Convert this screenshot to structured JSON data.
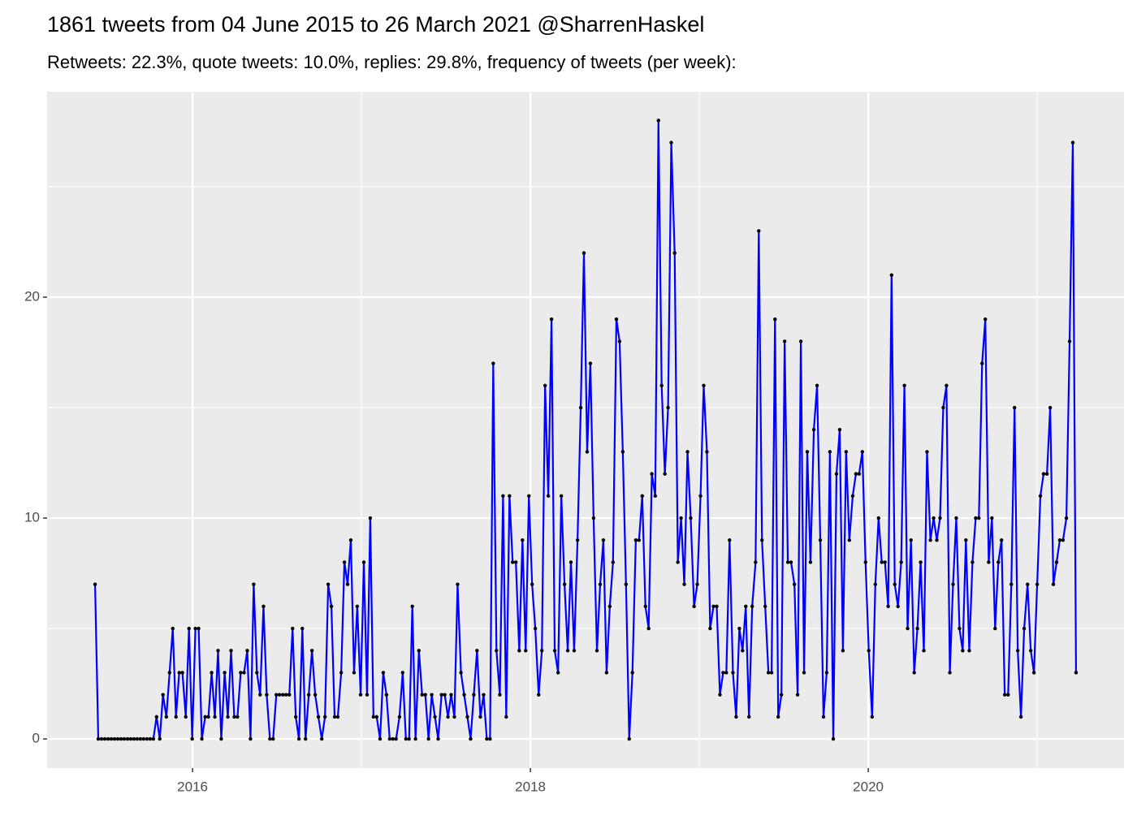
{
  "chart_data": {
    "type": "line",
    "title": "1861 tweets from 04 June 2015 to 26 March 2021 @SharrenHaskel",
    "subtitle": "Retweets: 22.3%, quote tweets: 10.0%, replies: 29.8%, frequency of tweets (per week):",
    "color": "#0000ff",
    "point_color": "#000000",
    "grid": true,
    "xlim": [
      2015.139,
      2021.514
    ],
    "xticks": [
      2016,
      2018,
      2020
    ],
    "x_minor_ticks": [
      2017,
      2019,
      2021
    ],
    "ylim": [
      -1.32,
      29.3
    ],
    "yticks": [
      0,
      10,
      20
    ],
    "y_minor_ticks": [
      5,
      15,
      25
    ],
    "x": [
      2015.423,
      2015.442,
      2015.461,
      2015.48,
      2015.5,
      2015.519,
      2015.538,
      2015.557,
      2015.576,
      2015.595,
      2015.615,
      2015.634,
      2015.653,
      2015.672,
      2015.691,
      2015.71,
      2015.73,
      2015.749,
      2015.768,
      2015.787,
      2015.806,
      2015.825,
      2015.845,
      2015.864,
      2015.883,
      2015.902,
      2015.921,
      2015.94,
      2015.96,
      2015.979,
      2015.998,
      2016.017,
      2016.036,
      2016.055,
      2016.075,
      2016.094,
      2016.113,
      2016.132,
      2016.151,
      2016.17,
      2016.19,
      2016.209,
      2016.228,
      2016.247,
      2016.266,
      2016.285,
      2016.305,
      2016.324,
      2016.343,
      2016.362,
      2016.381,
      2016.4,
      2016.42,
      2016.439,
      2016.458,
      2016.477,
      2016.496,
      2016.515,
      2016.535,
      2016.554,
      2016.573,
      2016.592,
      2016.611,
      2016.63,
      2016.65,
      2016.669,
      2016.688,
      2016.707,
      2016.726,
      2016.745,
      2016.765,
      2016.784,
      2016.803,
      2016.822,
      2016.841,
      2016.86,
      2016.88,
      2016.899,
      2016.918,
      2016.937,
      2016.956,
      2016.975,
      2016.995,
      2017.014,
      2017.033,
      2017.052,
      2017.071,
      2017.09,
      2017.11,
      2017.129,
      2017.148,
      2017.167,
      2017.186,
      2017.205,
      2017.225,
      2017.244,
      2017.263,
      2017.282,
      2017.301,
      2017.32,
      2017.34,
      2017.359,
      2017.378,
      2017.397,
      2017.416,
      2017.435,
      2017.454,
      2017.474,
      2017.493,
      2017.512,
      2017.531,
      2017.55,
      2017.569,
      2017.589,
      2017.608,
      2017.627,
      2017.646,
      2017.665,
      2017.684,
      2017.704,
      2017.723,
      2017.742,
      2017.761,
      2017.78,
      2017.799,
      2017.819,
      2017.838,
      2017.857,
      2017.876,
      2017.895,
      2017.914,
      2017.934,
      2017.953,
      2017.972,
      2017.991,
      2018.01,
      2018.029,
      2018.049,
      2018.068,
      2018.087,
      2018.106,
      2018.125,
      2018.144,
      2018.164,
      2018.183,
      2018.202,
      2018.221,
      2018.24,
      2018.259,
      2018.279,
      2018.298,
      2018.317,
      2018.336,
      2018.355,
      2018.374,
      2018.394,
      2018.413,
      2018.432,
      2018.451,
      2018.47,
      2018.489,
      2018.509,
      2018.528,
      2018.547,
      2018.566,
      2018.585,
      2018.604,
      2018.624,
      2018.643,
      2018.662,
      2018.681,
      2018.7,
      2018.719,
      2018.739,
      2018.758,
      2018.777,
      2018.796,
      2018.815,
      2018.834,
      2018.854,
      2018.873,
      2018.892,
      2018.911,
      2018.93,
      2018.949,
      2018.969,
      2018.988,
      2019.007,
      2019.026,
      2019.045,
      2019.064,
      2019.084,
      2019.103,
      2019.122,
      2019.141,
      2019.16,
      2019.179,
      2019.199,
      2019.218,
      2019.237,
      2019.256,
      2019.275,
      2019.294,
      2019.313,
      2019.333,
      2019.352,
      2019.371,
      2019.39,
      2019.409,
      2019.428,
      2019.448,
      2019.467,
      2019.486,
      2019.505,
      2019.524,
      2019.543,
      2019.563,
      2019.582,
      2019.601,
      2019.62,
      2019.639,
      2019.658,
      2019.678,
      2019.697,
      2019.716,
      2019.735,
      2019.754,
      2019.773,
      2019.793,
      2019.812,
      2019.831,
      2019.85,
      2019.869,
      2019.888,
      2019.908,
      2019.927,
      2019.946,
      2019.965,
      2019.984,
      2020.003,
      2020.023,
      2020.042,
      2020.061,
      2020.08,
      2020.099,
      2020.118,
      2020.138,
      2020.157,
      2020.176,
      2020.195,
      2020.214,
      2020.233,
      2020.253,
      2020.272,
      2020.291,
      2020.31,
      2020.329,
      2020.348,
      2020.368,
      2020.387,
      2020.406,
      2020.425,
      2020.444,
      2020.463,
      2020.483,
      2020.502,
      2020.521,
      2020.54,
      2020.559,
      2020.578,
      2020.598,
      2020.617,
      2020.636,
      2020.655,
      2020.674,
      2020.693,
      2020.713,
      2020.732,
      2020.751,
      2020.77,
      2020.789,
      2020.808,
      2020.828,
      2020.847,
      2020.866,
      2020.885,
      2020.904,
      2020.923,
      2020.943,
      2020.962,
      2020.981,
      2021.0,
      2021.019,
      2021.038,
      2021.058,
      2021.077,
      2021.096,
      2021.115,
      2021.134,
      2021.153,
      2021.173,
      2021.192,
      2021.211,
      2021.23
    ],
    "values": [
      7,
      0,
      0,
      0,
      0,
      0,
      0,
      0,
      0,
      0,
      0,
      0,
      0,
      0,
      0,
      0,
      0,
      0,
      0,
      1,
      0,
      2,
      1,
      3,
      5,
      1,
      3,
      3,
      1,
      5,
      0,
      5,
      5,
      0,
      1,
      1,
      3,
      1,
      4,
      0,
      3,
      1,
      4,
      1,
      1,
      3,
      3,
      4,
      0,
      7,
      3,
      2,
      6,
      2,
      0,
      0,
      2,
      2,
      2,
      2,
      2,
      5,
      1,
      0,
      5,
      0,
      2,
      4,
      2,
      1,
      0,
      1,
      7,
      6,
      1,
      1,
      3,
      8,
      7,
      9,
      3,
      6,
      2,
      8,
      2,
      10,
      1,
      1,
      0,
      3,
      2,
      0,
      0,
      0,
      1,
      3,
      0,
      0,
      6,
      0,
      4,
      2,
      2,
      0,
      2,
      1,
      0,
      2,
      2,
      1,
      2,
      1,
      7,
      3,
      2,
      1,
      0,
      2,
      4,
      1,
      2,
      0,
      0,
      17,
      4,
      2,
      11,
      1,
      11,
      8,
      8,
      4,
      9,
      4,
      11,
      7,
      5,
      2,
      4,
      16,
      11,
      19,
      4,
      3,
      11,
      7,
      4,
      8,
      4,
      9,
      15,
      22,
      13,
      17,
      10,
      4,
      7,
      9,
      3,
      6,
      8,
      19,
      18,
      13,
      7,
      0,
      3,
      9,
      9,
      11,
      6,
      5,
      12,
      11,
      28,
      16,
      12,
      15,
      27,
      22,
      8,
      10,
      7,
      13,
      10,
      6,
      7,
      11,
      16,
      13,
      5,
      6,
      6,
      2,
      3,
      3,
      9,
      3,
      1,
      5,
      4,
      6,
      1,
      6,
      8,
      23,
      9,
      6,
      3,
      3,
      19,
      1,
      2,
      18,
      8,
      8,
      7,
      2,
      18,
      3,
      13,
      8,
      14,
      16,
      9,
      1,
      3,
      13,
      0,
      12,
      14,
      4,
      13,
      9,
      11,
      12,
      12,
      13,
      8,
      4,
      1,
      7,
      10,
      8,
      8,
      6,
      21,
      7,
      6,
      8,
      16,
      5,
      9,
      3,
      5,
      8,
      4,
      13,
      9,
      10,
      9,
      10,
      15,
      16,
      3,
      7,
      10,
      5,
      4,
      9,
      4,
      8,
      10,
      10,
      17,
      19,
      8,
      10,
      5,
      8,
      9,
      2,
      2,
      7,
      15,
      4,
      1,
      5,
      7,
      4,
      3,
      7,
      11,
      12,
      12,
      15,
      7,
      8,
      9,
      9,
      10,
      18,
      27,
      3
    ]
  }
}
